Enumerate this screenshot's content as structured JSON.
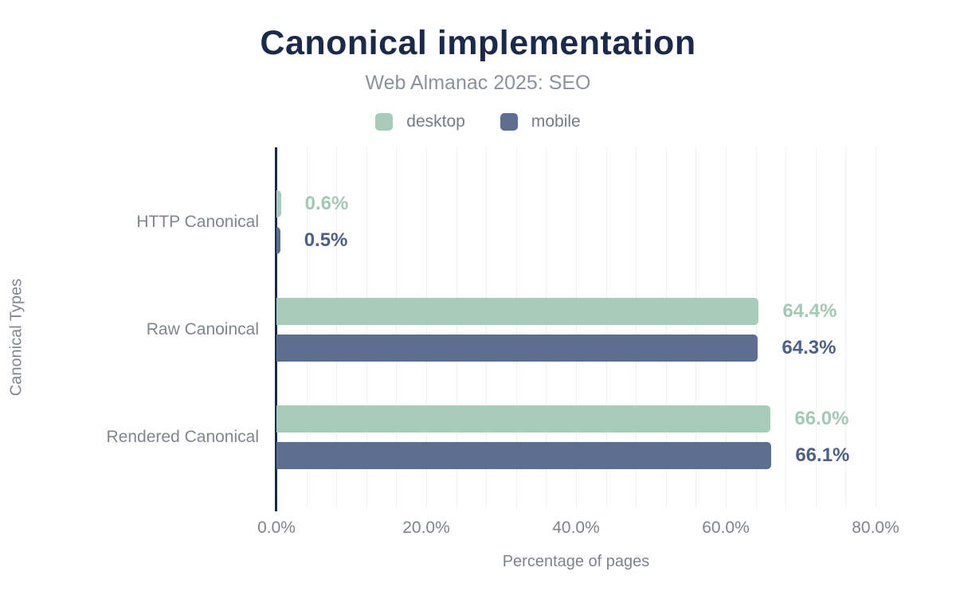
{
  "title": "Canonical implementation",
  "subtitle": "Web Almanac 2025: SEO",
  "legend": [
    {
      "label": "desktop",
      "color": "#a8ccba"
    },
    {
      "label": "mobile",
      "color": "#5c6f90"
    }
  ],
  "chart_data": {
    "type": "bar",
    "orientation": "horizontal",
    "title": "Canonical implementation",
    "subtitle": "Web Almanac 2025: SEO",
    "categories": [
      "HTTP Canonical",
      "Raw Canoincal",
      "Rendered Canonical"
    ],
    "series": [
      {
        "name": "desktop",
        "color": "#a8ccba",
        "label_color": "#a3c9b5",
        "values": [
          0.6,
          64.4,
          66.0
        ],
        "value_labels": [
          "0.6%",
          "64.4%",
          "66.0%"
        ]
      },
      {
        "name": "mobile",
        "color": "#5c6f90",
        "label_color": "#4d6186",
        "values": [
          0.5,
          64.3,
          66.1
        ],
        "value_labels": [
          "0.5%",
          "64.3%",
          "66.1%"
        ]
      }
    ],
    "xlabel": "Percentage of pages",
    "ylabel": "Canonical Types",
    "x_ticks": [
      "0.0%",
      "20.0%",
      "40.0%",
      "60.0%",
      "80.0%"
    ],
    "x_tick_values": [
      0,
      20,
      40,
      60,
      80
    ],
    "xlim": [
      0,
      80
    ],
    "grid": "vertical-minor-every-4pct",
    "gridline_color": "#f0f1f3",
    "axis_color": "#1b2a4a",
    "title_color": "#1b2a4a",
    "text_color": "#81858d",
    "legend_position": "top-center"
  }
}
